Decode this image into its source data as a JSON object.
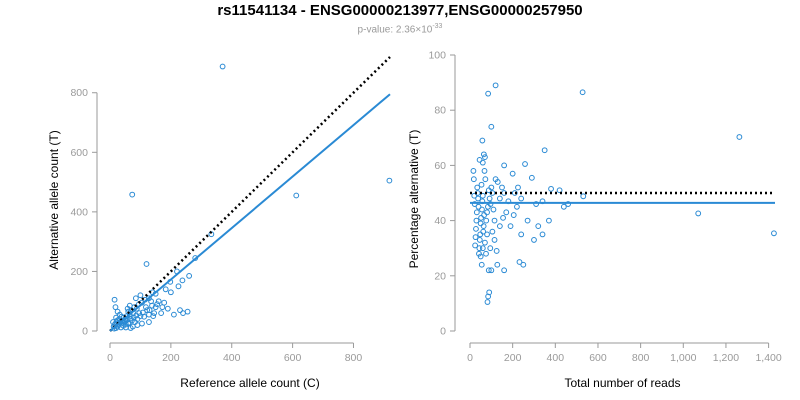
{
  "header": {
    "title": "rs11541134 - ENSG00000213977,ENSG00000257950",
    "pvalue_prefix": "p-value: 2.36×10",
    "pvalue_exponent": "-33"
  },
  "colors": {
    "point": "#2a8ad4",
    "fit_line": "#2a8ad4",
    "reference_line": "#000000",
    "axis": "#9a9a9a"
  },
  "chart_data": [
    {
      "type": "scatter",
      "xlabel": "Reference allele count (C)",
      "ylabel": "Alternative allele count (T)",
      "xlim": [
        0,
        920
      ],
      "ylim": [
        0,
        920
      ],
      "xticks": [
        0,
        200,
        400,
        600,
        800
      ],
      "yticks": [
        0,
        200,
        400,
        600,
        800
      ],
      "reference_line": {
        "x": [
          0,
          920
        ],
        "y": [
          0,
          920
        ],
        "style": "dotted"
      },
      "fit_line": {
        "x": [
          0,
          920
        ],
        "y": [
          0,
          795
        ],
        "style": "solid"
      },
      "points": [
        [
          370,
          888
        ],
        [
          918,
          505
        ],
        [
          73,
          458
        ],
        [
          612,
          455
        ],
        [
          333,
          325
        ],
        [
          120,
          225
        ],
        [
          220,
          200
        ],
        [
          238,
          170
        ],
        [
          198,
          165
        ],
        [
          183,
          140
        ],
        [
          150,
          125
        ],
        [
          160,
          100
        ],
        [
          135,
          100
        ],
        [
          190,
          75
        ],
        [
          230,
          70
        ],
        [
          172,
          80
        ],
        [
          210,
          55
        ],
        [
          240,
          60
        ],
        [
          255,
          65
        ],
        [
          145,
          60
        ],
        [
          130,
          70
        ],
        [
          118,
          80
        ],
        [
          105,
          95
        ],
        [
          95,
          90
        ],
        [
          88,
          75
        ],
        [
          80,
          80
        ],
        [
          76,
          60
        ],
        [
          70,
          70
        ],
        [
          65,
          55
        ],
        [
          60,
          65
        ],
        [
          55,
          50
        ],
        [
          50,
          40
        ],
        [
          45,
          45
        ],
        [
          40,
          35
        ],
        [
          35,
          30
        ],
        [
          30,
          25
        ],
        [
          28,
          20
        ],
        [
          25,
          15
        ],
        [
          22,
          30
        ],
        [
          20,
          10
        ],
        [
          18,
          25
        ],
        [
          15,
          105
        ],
        [
          18,
          80
        ],
        [
          25,
          65
        ],
        [
          32,
          55
        ],
        [
          38,
          48
        ],
        [
          42,
          28
        ],
        [
          48,
          32
        ],
        [
          52,
          22
        ],
        [
          58,
          38
        ],
        [
          62,
          28
        ],
        [
          68,
          42
        ],
        [
          72,
          35
        ],
        [
          78,
          45
        ],
        [
          82,
          30
        ],
        [
          86,
          52
        ],
        [
          90,
          40
        ],
        [
          96,
          60
        ],
        [
          100,
          50
        ],
        [
          108,
          62
        ],
        [
          112,
          48
        ],
        [
          122,
          70
        ],
        [
          128,
          55
        ],
        [
          138,
          85
        ],
        [
          142,
          50
        ],
        [
          155,
          90
        ],
        [
          168,
          60
        ],
        [
          178,
          95
        ],
        [
          128,
          30
        ],
        [
          105,
          25
        ],
        [
          90,
          20
        ],
        [
          75,
          15
        ],
        [
          68,
          10
        ],
        [
          60,
          25
        ],
        [
          52,
          12
        ],
        [
          44,
          18
        ],
        [
          36,
          12
        ],
        [
          30,
          40
        ],
        [
          24,
          35
        ],
        [
          20,
          45
        ],
        [
          16,
          22
        ],
        [
          14,
          8
        ],
        [
          12,
          15
        ],
        [
          10,
          30
        ],
        [
          85,
          110
        ],
        [
          100,
          120
        ],
        [
          115,
          105
        ],
        [
          150,
          80
        ],
        [
          200,
          130
        ],
        [
          225,
          150
        ],
        [
          260,
          185
        ],
        [
          280,
          245
        ],
        [
          128,
          110
        ],
        [
          140,
          130
        ],
        [
          65,
          85
        ],
        [
          58,
          75
        ]
      ]
    },
    {
      "type": "scatter",
      "xlabel": "Total number of reads",
      "ylabel": "Percentage alternative (T)",
      "xlim": [
        0,
        1430
      ],
      "ylim": [
        0,
        100
      ],
      "xticks": [
        0,
        200,
        400,
        600,
        800,
        1000,
        1200,
        1400
      ],
      "xtick_labels": [
        "0",
        "200",
        "400",
        "600",
        "800",
        "1,000",
        "1,200",
        "1,400"
      ],
      "yticks": [
        0,
        20,
        40,
        60,
        80,
        100
      ],
      "reference_line": {
        "x": [
          0,
          1430
        ],
        "y": [
          50,
          50
        ],
        "style": "dotted"
      },
      "fit_line": {
        "x": [
          0,
          1430
        ],
        "y": [
          46.4,
          46.4
        ],
        "style": "solid"
      },
      "points": [
        [
          1263,
          70.3
        ],
        [
          1425,
          35.4
        ],
        [
          1070,
          42.6
        ],
        [
          528,
          86.5
        ],
        [
          531,
          48.8
        ],
        [
          120,
          89
        ],
        [
          85,
          86
        ],
        [
          100,
          74
        ],
        [
          58,
          69
        ],
        [
          350,
          65.5
        ],
        [
          258,
          60.5
        ],
        [
          70,
          63
        ],
        [
          60,
          61
        ],
        [
          200,
          57
        ],
        [
          290,
          55.5
        ],
        [
          420,
          51
        ],
        [
          380,
          51.5
        ],
        [
          460,
          46
        ],
        [
          440,
          45
        ],
        [
          340,
          47
        ],
        [
          310,
          46
        ],
        [
          370,
          40
        ],
        [
          320,
          38
        ],
        [
          340,
          35
        ],
        [
          300,
          33
        ],
        [
          232,
          25
        ],
        [
          250,
          24
        ],
        [
          160,
          22
        ],
        [
          128,
          24
        ],
        [
          100,
          22
        ],
        [
          88,
          22
        ],
        [
          85,
          12.5
        ],
        [
          82,
          10.5
        ],
        [
          90,
          14
        ],
        [
          240,
          35
        ],
        [
          270,
          40
        ],
        [
          220,
          45
        ],
        [
          205,
          42
        ],
        [
          190,
          38
        ],
        [
          180,
          47
        ],
        [
          170,
          43
        ],
        [
          160,
          50
        ],
        [
          150,
          52
        ],
        [
          140,
          48
        ],
        [
          130,
          54
        ],
        [
          120,
          55
        ],
        [
          115,
          40
        ],
        [
          110,
          44
        ],
        [
          105,
          50
        ],
        [
          100,
          52
        ],
        [
          96,
          46
        ],
        [
          92,
          48
        ],
        [
          88,
          51
        ],
        [
          84,
          45
        ],
        [
          80,
          43
        ],
        [
          76,
          40
        ],
        [
          72,
          55
        ],
        [
          68,
          58
        ],
        [
          66,
          42
        ],
        [
          64,
          38
        ],
        [
          62,
          36
        ],
        [
          60,
          49
        ],
        [
          58,
          47
        ],
        [
          56,
          44
        ],
        [
          54,
          53
        ],
        [
          52,
          41
        ],
        [
          50,
          39
        ],
        [
          48,
          35
        ],
        [
          46,
          33
        ],
        [
          44,
          30
        ],
        [
          42,
          28
        ],
        [
          40,
          45
        ],
        [
          38,
          48
        ],
        [
          36,
          50
        ],
        [
          34,
          52
        ],
        [
          32,
          43
        ],
        [
          30,
          40
        ],
        [
          28,
          37
        ],
        [
          26,
          34
        ],
        [
          24,
          31
        ],
        [
          22,
          46
        ],
        [
          20,
          49
        ],
        [
          18,
          55
        ],
        [
          16,
          58
        ],
        [
          50,
          27
        ],
        [
          55,
          24
        ],
        [
          60,
          30
        ],
        [
          70,
          32
        ],
        [
          75,
          28
        ],
        [
          80,
          35
        ],
        [
          95,
          30
        ],
        [
          105,
          36
        ],
        [
          115,
          33
        ],
        [
          125,
          29
        ],
        [
          140,
          38
        ],
        [
          155,
          41
        ],
        [
          210,
          50
        ],
        [
          225,
          52
        ],
        [
          240,
          48
        ],
        [
          160,
          60
        ],
        [
          65,
          64
        ],
        [
          45,
          62
        ]
      ]
    }
  ]
}
